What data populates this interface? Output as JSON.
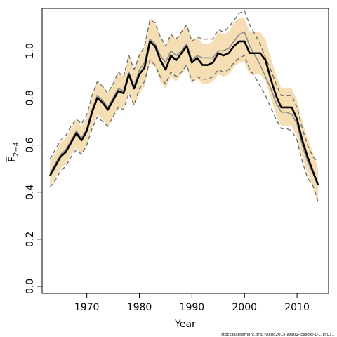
{
  "chart_data": {
    "type": "line",
    "title": "",
    "xlabel": "Year",
    "ylabel": "F",
    "ylabel_sub": "2−4",
    "xlim": [
      1961.5,
      2016.0
    ],
    "ylim": [
      -0.03,
      1.18
    ],
    "xticks": [
      1970,
      1980,
      1990,
      2000,
      2010
    ],
    "yticks": [
      "0.0",
      "0.2",
      "0.4",
      "0.6",
      "0.8",
      "1.0"
    ],
    "credit": "stockassessment.org, nscod2015-ass01-icesext-Q1, r5031",
    "colors": {
      "band": "#f5deb3",
      "estimate": "#000000",
      "alternative": "#8c8c8c",
      "bounds": "#6e6e6e",
      "frame": "#000000"
    },
    "series": [
      {
        "role": "estimate",
        "x": [
          1963,
          1964,
          1965,
          1966,
          1967,
          1968,
          1969,
          1970,
          1971,
          1972,
          1973,
          1974,
          1975,
          1976,
          1977,
          1978,
          1979,
          1980,
          1981,
          1982,
          1983,
          1984,
          1985,
          1986,
          1987,
          1988,
          1989,
          1990,
          1991,
          1992,
          1993,
          1994,
          1995,
          1996,
          1997,
          1998,
          1999,
          2000,
          2001,
          2002,
          2003,
          2004,
          2005,
          2006,
          2007,
          2008,
          2009,
          2010,
          2011,
          2012,
          2013,
          2014
        ],
        "values": [
          0.47,
          0.51,
          0.55,
          0.57,
          0.61,
          0.65,
          0.62,
          0.66,
          0.74,
          0.8,
          0.78,
          0.75,
          0.79,
          0.83,
          0.82,
          0.9,
          0.84,
          0.9,
          0.93,
          1.04,
          1.02,
          0.96,
          0.92,
          0.98,
          0.96,
          0.99,
          1.02,
          0.95,
          0.97,
          0.94,
          0.94,
          0.95,
          0.99,
          0.98,
          0.99,
          1.02,
          1.04,
          1.04,
          0.99,
          0.99,
          0.99,
          0.96,
          0.88,
          0.81,
          0.76,
          0.76,
          0.76,
          0.71,
          0.62,
          0.55,
          0.49,
          0.43
        ]
      },
      {
        "role": "alternative",
        "x": [
          1963,
          1964,
          1965,
          1966,
          1967,
          1968,
          1969,
          1970,
          1971,
          1972,
          1973,
          1974,
          1975,
          1976,
          1977,
          1978,
          1979,
          1980,
          1981,
          1982,
          1983,
          1984,
          1985,
          1986,
          1987,
          1988,
          1989,
          1990,
          1991,
          1992,
          1993,
          1994,
          1995,
          1996,
          1997,
          1998,
          1999,
          2000,
          2001,
          2002,
          2003,
          2004,
          2005,
          2006,
          2007,
          2008,
          2009,
          2010,
          2011,
          2012,
          2013,
          2014
        ],
        "values": [
          0.48,
          0.52,
          0.56,
          0.58,
          0.62,
          0.66,
          0.63,
          0.67,
          0.75,
          0.81,
          0.79,
          0.76,
          0.8,
          0.84,
          0.83,
          0.91,
          0.85,
          0.92,
          0.95,
          1.05,
          1.03,
          0.98,
          0.95,
          1.0,
          0.98,
          1.0,
          1.03,
          0.96,
          0.98,
          0.97,
          0.97,
          0.97,
          1.0,
          1.0,
          1.01,
          1.04,
          1.07,
          1.08,
          1.02,
          0.98,
          0.94,
          0.89,
          0.84,
          0.78,
          0.74,
          0.74,
          0.73,
          0.69,
          0.6,
          0.53,
          0.48,
          0.44
        ]
      },
      {
        "role": "upper-bound",
        "x": [
          1963,
          1964,
          1965,
          1966,
          1967,
          1968,
          1969,
          1970,
          1971,
          1972,
          1973,
          1974,
          1975,
          1976,
          1977,
          1978,
          1979,
          1980,
          1981,
          1982,
          1983,
          1984,
          1985,
          1986,
          1987,
          1988,
          1989,
          1990,
          1991,
          1992,
          1993,
          1994,
          1995,
          1996,
          1997,
          1998,
          1999,
          2000,
          2001,
          2002,
          2003,
          2004,
          2005,
          2006,
          2007,
          2008,
          2009,
          2010,
          2011,
          2012,
          2013,
          2014
        ],
        "values": [
          0.54,
          0.58,
          0.62,
          0.64,
          0.68,
          0.71,
          0.69,
          0.73,
          0.81,
          0.87,
          0.85,
          0.82,
          0.86,
          0.91,
          0.89,
          0.98,
          0.92,
          0.98,
          1.02,
          1.13,
          1.12,
          1.06,
          1.02,
          1.07,
          1.05,
          1.08,
          1.11,
          1.04,
          1.06,
          1.05,
          1.05,
          1.05,
          1.09,
          1.08,
          1.1,
          1.13,
          1.16,
          1.17,
          1.11,
          1.07,
          1.03,
          0.97,
          0.92,
          0.86,
          0.81,
          0.81,
          0.81,
          0.76,
          0.67,
          0.6,
          0.55,
          0.53
        ]
      },
      {
        "role": "lower-bound",
        "x": [
          1963,
          1964,
          1965,
          1966,
          1967,
          1968,
          1969,
          1970,
          1971,
          1972,
          1973,
          1974,
          1975,
          1976,
          1977,
          1978,
          1979,
          1980,
          1981,
          1982,
          1983,
          1984,
          1985,
          1986,
          1987,
          1988,
          1989,
          1990,
          1991,
          1992,
          1993,
          1994,
          1995,
          1996,
          1997,
          1998,
          1999,
          2000,
          2001,
          2002,
          2003,
          2004,
          2005,
          2006,
          2007,
          2008,
          2009,
          2010,
          2011,
          2012,
          2013,
          2014
        ],
        "values": [
          0.42,
          0.45,
          0.49,
          0.51,
          0.55,
          0.58,
          0.56,
          0.6,
          0.67,
          0.72,
          0.7,
          0.68,
          0.72,
          0.76,
          0.75,
          0.82,
          0.77,
          0.84,
          0.87,
          0.96,
          0.94,
          0.89,
          0.86,
          0.91,
          0.89,
          0.91,
          0.94,
          0.87,
          0.89,
          0.88,
          0.88,
          0.89,
          0.92,
          0.91,
          0.92,
          0.95,
          0.97,
          0.98,
          0.92,
          0.89,
          0.85,
          0.81,
          0.76,
          0.71,
          0.67,
          0.67,
          0.66,
          0.62,
          0.53,
          0.46,
          0.43,
          0.36
        ]
      },
      {
        "role": "band-upper",
        "x": [
          1963,
          1964,
          1965,
          1966,
          1967,
          1968,
          1969,
          1970,
          1971,
          1972,
          1973,
          1974,
          1975,
          1976,
          1977,
          1978,
          1979,
          1980,
          1981,
          1982,
          1983,
          1984,
          1985,
          1986,
          1987,
          1988,
          1989,
          1990,
          1991,
          1992,
          1993,
          1994,
          1995,
          1996,
          1997,
          1998,
          1999,
          2000,
          2001,
          2002,
          2003,
          2004,
          2005,
          2006,
          2007,
          2008,
          2009,
          2010,
          2011,
          2012,
          2013,
          2014
        ],
        "values": [
          0.53,
          0.57,
          0.61,
          0.63,
          0.67,
          0.71,
          0.68,
          0.72,
          0.81,
          0.87,
          0.85,
          0.82,
          0.86,
          0.91,
          0.89,
          0.98,
          0.92,
          0.99,
          1.02,
          1.14,
          1.12,
          1.06,
          1.02,
          1.07,
          1.05,
          1.08,
          1.11,
          1.04,
          1.06,
          1.03,
          1.03,
          1.04,
          1.08,
          1.07,
          1.08,
          1.12,
          1.14,
          1.14,
          1.08,
          1.08,
          1.08,
          1.05,
          0.97,
          0.9,
          0.84,
          0.84,
          0.84,
          0.79,
          0.7,
          0.63,
          0.57,
          0.5
        ]
      },
      {
        "role": "band-lower",
        "x": [
          1963,
          1964,
          1965,
          1966,
          1967,
          1968,
          1969,
          1970,
          1971,
          1972,
          1973,
          1974,
          1975,
          1976,
          1977,
          1978,
          1979,
          1980,
          1981,
          1982,
          1983,
          1984,
          1985,
          1986,
          1987,
          1988,
          1989,
          1990,
          1991,
          1992,
          1993,
          1994,
          1995,
          1996,
          1997,
          1998,
          1999,
          2000,
          2001,
          2002,
          2003,
          2004,
          2005,
          2006,
          2007,
          2008,
          2009,
          2010,
          2011,
          2012,
          2013,
          2014
        ],
        "values": [
          0.42,
          0.46,
          0.5,
          0.52,
          0.56,
          0.59,
          0.56,
          0.6,
          0.68,
          0.73,
          0.71,
          0.68,
          0.72,
          0.76,
          0.75,
          0.82,
          0.77,
          0.82,
          0.85,
          0.95,
          0.93,
          0.87,
          0.84,
          0.89,
          0.87,
          0.9,
          0.93,
          0.86,
          0.88,
          0.86,
          0.86,
          0.87,
          0.9,
          0.89,
          0.9,
          0.93,
          0.95,
          0.95,
          0.9,
          0.9,
          0.9,
          0.87,
          0.8,
          0.73,
          0.68,
          0.68,
          0.68,
          0.63,
          0.55,
          0.48,
          0.42,
          0.35
        ]
      }
    ]
  }
}
